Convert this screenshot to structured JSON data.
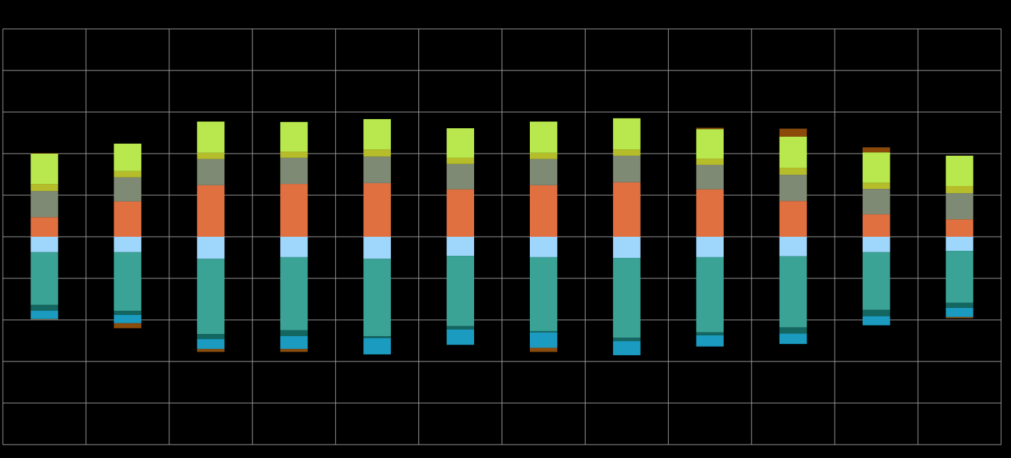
{
  "chart_data": {
    "type": "stacked_bar",
    "categories": [
      null,
      null,
      null,
      null,
      null,
      null,
      null,
      null,
      null,
      null,
      null,
      null
    ],
    "ylim": [
      -5,
      5
    ],
    "yticks": [
      -5,
      -4,
      -3,
      -2,
      -1,
      0,
      1,
      2,
      3,
      4,
      5
    ],
    "grid": true,
    "series": [
      {
        "color": "#e07040",
        "values": [
          0.47,
          0.85,
          1.24,
          1.27,
          1.29,
          1.14,
          1.24,
          1.31,
          1.14,
          0.86,
          0.54,
          0.42
        ]
      },
      {
        "color": "#7f8a74",
        "values": [
          0.63,
          0.58,
          0.63,
          0.63,
          0.64,
          0.61,
          0.63,
          0.64,
          0.59,
          0.63,
          0.61,
          0.63
        ]
      },
      {
        "color": "#b5bd2a",
        "values": [
          0.17,
          0.15,
          0.15,
          0.15,
          0.17,
          0.15,
          0.15,
          0.15,
          0.15,
          0.17,
          0.15,
          0.17
        ]
      },
      {
        "color": "#b8e84e",
        "values": [
          0.73,
          0.66,
          0.75,
          0.71,
          0.73,
          0.71,
          0.75,
          0.75,
          0.71,
          0.75,
          0.73,
          0.73
        ]
      },
      {
        "color": "#8b4a0a",
        "values": [
          0.01,
          0,
          0,
          0,
          0,
          0,
          0,
          0,
          0.03,
          0.19,
          0.12,
          0
        ]
      },
      {
        "color": "#9fd6fb",
        "values": [
          -0.37,
          -0.37,
          -0.53,
          -0.49,
          -0.53,
          -0.46,
          -0.49,
          -0.51,
          -0.49,
          -0.47,
          -0.37,
          -0.34
        ]
      },
      {
        "color": "#3aa396",
        "values": [
          -1.27,
          -1.41,
          -1.81,
          -1.76,
          -1.86,
          -1.69,
          -1.78,
          -1.92,
          -1.81,
          -1.71,
          -1.39,
          -1.25
        ]
      },
      {
        "color": "#146660",
        "values": [
          -0.14,
          -0.1,
          -0.12,
          -0.14,
          -0.05,
          -0.08,
          -0.03,
          -0.08,
          -0.07,
          -0.15,
          -0.15,
          -0.12
        ]
      },
      {
        "color": "#1a9bbf",
        "values": [
          -0.2,
          -0.2,
          -0.24,
          -0.31,
          -0.39,
          -0.37,
          -0.37,
          -0.34,
          -0.27,
          -0.25,
          -0.22,
          -0.22
        ]
      },
      {
        "color": "#8a4c0c",
        "values": [
          -0.01,
          -0.12,
          -0.07,
          -0.07,
          0,
          0,
          -0.1,
          0,
          0,
          0,
          0,
          -0.03
        ]
      }
    ]
  }
}
